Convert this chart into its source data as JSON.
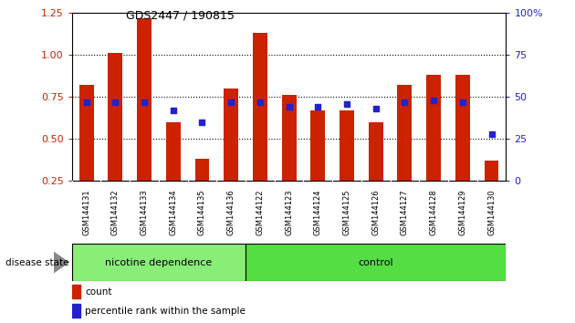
{
  "title": "GDS2447 / 190815",
  "samples": [
    "GSM144131",
    "GSM144132",
    "GSM144133",
    "GSM144134",
    "GSM144135",
    "GSM144136",
    "GSM144122",
    "GSM144123",
    "GSM144124",
    "GSM144125",
    "GSM144126",
    "GSM144127",
    "GSM144128",
    "GSM144129",
    "GSM144130"
  ],
  "counts": [
    0.82,
    1.01,
    1.22,
    0.6,
    0.38,
    0.8,
    1.13,
    0.76,
    0.67,
    0.67,
    0.6,
    0.82,
    0.88,
    0.88,
    0.37
  ],
  "percentiles": [
    47,
    47,
    47,
    42,
    35,
    47,
    47,
    44,
    44,
    46,
    43,
    47,
    48,
    47,
    28
  ],
  "groups": [
    "nicotine dependence",
    "nicotine dependence",
    "nicotine dependence",
    "nicotine dependence",
    "nicotine dependence",
    "nicotine dependence",
    "control",
    "control",
    "control",
    "control",
    "control",
    "control",
    "control",
    "control",
    "control"
  ],
  "bar_color": "#cc2200",
  "dot_color": "#2222cc",
  "nicotine_color": "#88ee77",
  "control_color": "#55dd44",
  "ylim_left": [
    0.25,
    1.25
  ],
  "ylim_right": [
    0,
    100
  ],
  "yticks_left": [
    0.25,
    0.5,
    0.75,
    1.0,
    1.25
  ],
  "yticks_right": [
    0,
    25,
    50,
    75,
    100
  ],
  "background_color": "#ffffff",
  "tick_label_area_color": "#bbbbbb",
  "group_label_nicotine": "nicotine dependence",
  "group_label_control": "control",
  "disease_state_label": "disease state",
  "legend_count": "count",
  "legend_percentile": "percentile rank within the sample"
}
